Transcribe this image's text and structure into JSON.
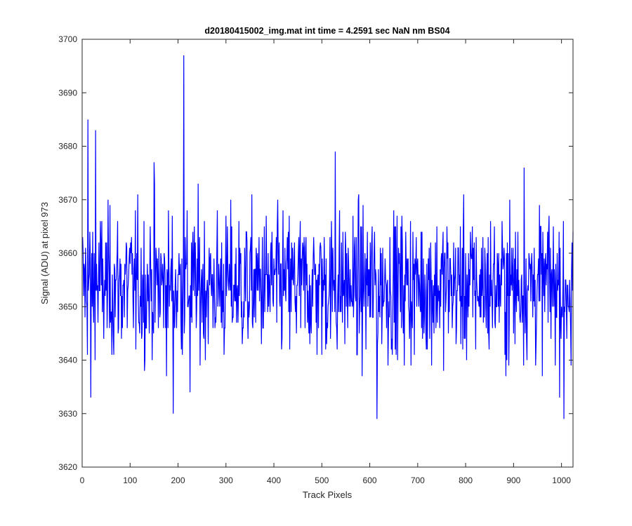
{
  "chart_data": {
    "type": "line",
    "title": "d20180415002_img.mat int time = 4.2591 sec  NaN nm BS04",
    "xlabel": "Track Pixels",
    "ylabel": "Signal (ADU) at pixel 973",
    "xlim": [
      0,
      1024
    ],
    "ylim": [
      3620,
      3700
    ],
    "xticks": [
      0,
      100,
      200,
      300,
      400,
      500,
      600,
      700,
      800,
      900,
      1000
    ],
    "yticks": [
      3620,
      3630,
      3640,
      3650,
      3660,
      3670,
      3680,
      3690,
      3700
    ],
    "grid": false,
    "legend": "none",
    "series": [
      {
        "color": "#0000ff",
        "x_start": 1,
        "x_step": 1,
        "n_points": 1024,
        "mean": 3654,
        "min": 3629,
        "max": 3697,
        "notable_points": [
          {
            "x": 12,
            "y": 3685
          },
          {
            "x": 18,
            "y": 3633
          },
          {
            "x": 28,
            "y": 3683
          },
          {
            "x": 150,
            "y": 3677
          },
          {
            "x": 190,
            "y": 3630
          },
          {
            "x": 212,
            "y": 3697
          },
          {
            "x": 225,
            "y": 3634
          },
          {
            "x": 528,
            "y": 3679
          },
          {
            "x": 615,
            "y": 3629
          },
          {
            "x": 922,
            "y": 3676
          },
          {
            "x": 1005,
            "y": 3629
          },
          {
            "x": 1020,
            "y": 3639
          }
        ]
      }
    ]
  }
}
